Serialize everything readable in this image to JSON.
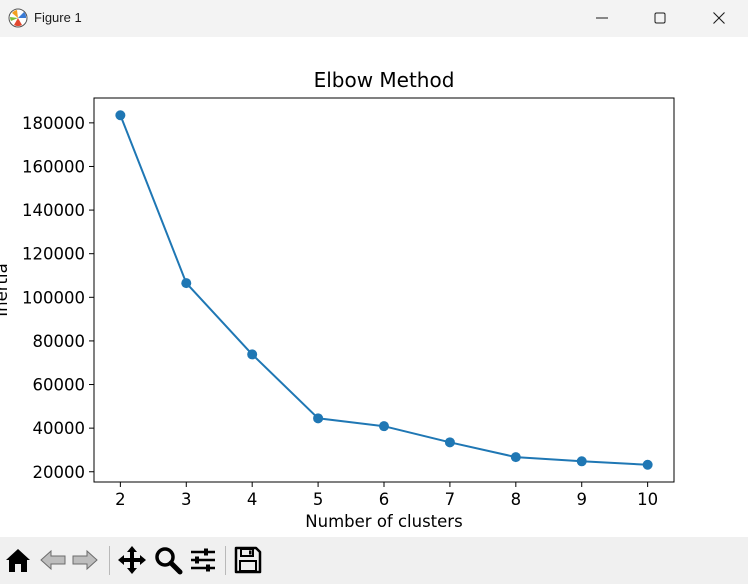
{
  "window": {
    "title": "Figure 1",
    "minimize_icon": "minimize-icon",
    "maximize_icon": "maximize-icon",
    "close_icon": "close-icon"
  },
  "chart_data": {
    "type": "line",
    "title": "Elbow Method",
    "xlabel": "Number of clusters",
    "ylabel": "Inertia",
    "x": [
      2,
      3,
      4,
      5,
      6,
      7,
      8,
      9,
      10
    ],
    "series": [
      {
        "values": [
          183500,
          106500,
          73800,
          44500,
          40900,
          33500,
          26700,
          24800,
          23200
        ],
        "color": "#1f77b4",
        "marker": "circle"
      }
    ],
    "xticks": [
      2,
      3,
      4,
      5,
      6,
      7,
      8,
      9,
      10
    ],
    "yticks": [
      20000,
      40000,
      60000,
      80000,
      100000,
      120000,
      140000,
      160000,
      180000
    ],
    "ytick_labels": [
      "20000",
      "40000",
      "60000",
      "80000",
      "100000",
      "120000",
      "140000",
      "160000",
      "180000"
    ],
    "xlim": [
      1.6,
      10.4
    ],
    "ylim": [
      15300,
      191400
    ],
    "grid": false
  },
  "toolbar": {
    "items": [
      "home-icon",
      "back-icon",
      "forward-icon",
      "pan-icon",
      "zoom-icon",
      "configure-subplots-icon",
      "save-icon"
    ]
  }
}
